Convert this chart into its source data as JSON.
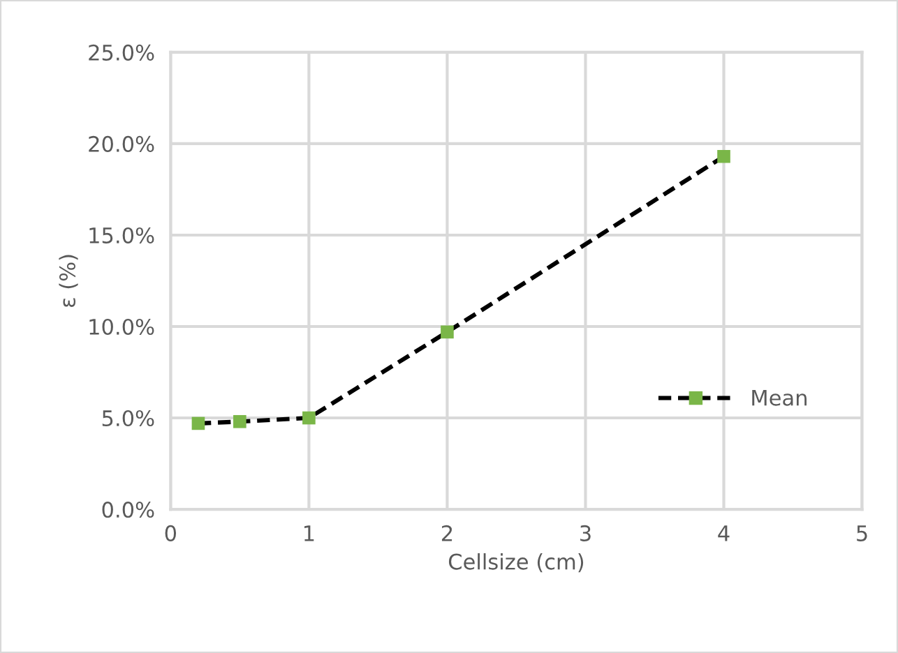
{
  "chart_data": {
    "type": "line",
    "xlabel": "Cellsize (cm)",
    "ylabel": "ε (%)",
    "x": [
      0.2,
      0.5,
      1,
      2,
      4
    ],
    "series": [
      {
        "name": "Mean",
        "color": "#000000",
        "colors": [
          "#7ab648",
          "#7ab648",
          "#7ab648",
          "#7ab648",
          "#7ab648"
        ],
        "values": [
          4.7,
          4.8,
          5.0,
          9.7,
          19.3
        ]
      }
    ],
    "xlim": [
      0,
      5
    ],
    "xticks": [
      0,
      1,
      2,
      3,
      4,
      5
    ],
    "ylim": [
      0,
      25
    ],
    "yticks": [
      {
        "value": 0,
        "label": "0.0%"
      },
      {
        "value": 5,
        "label": "5.0%"
      },
      {
        "value": 10,
        "label": "10.0%"
      },
      {
        "value": 15,
        "label": "15.0%"
      },
      {
        "value": 20,
        "label": "20.0%"
      },
      {
        "value": 25,
        "label": "25.0%"
      }
    ],
    "grid": true,
    "legend": "right",
    "marker": "square",
    "line_style": "dashed"
  }
}
